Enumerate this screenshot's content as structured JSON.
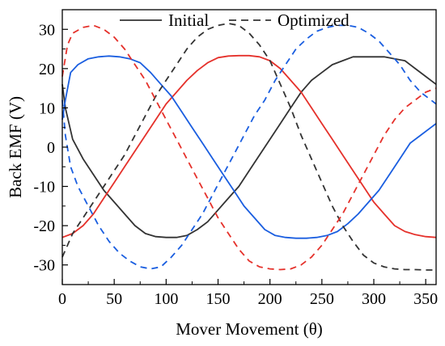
{
  "chart_data": {
    "type": "line",
    "xlabel": "Mover Movement (θ)",
    "ylabel": "Back EMF (V)",
    "xlim": [
      0,
      360
    ],
    "ylim": [
      -35,
      35
    ],
    "xticks": [
      0,
      50,
      100,
      150,
      200,
      250,
      300,
      350
    ],
    "yticks": [
      -30,
      -20,
      -10,
      0,
      10,
      20,
      30
    ],
    "grid": false,
    "legend": {
      "position": "top-center",
      "entries": [
        {
          "label": "Initial",
          "style": "solid",
          "color": "#333333"
        },
        {
          "label": "Optimized",
          "style": "dashed",
          "color": "#333333"
        }
      ]
    },
    "series": [
      {
        "group": "Initial",
        "phase_color": "#333333",
        "dashed": false,
        "x": [
          0,
          3,
          10,
          20,
          30,
          40,
          50,
          60,
          70,
          80,
          90,
          100,
          110,
          120,
          130,
          140,
          150,
          160,
          170,
          180,
          190,
          200,
          210,
          220,
          230,
          240,
          250,
          260,
          270,
          280,
          290,
          300,
          310,
          320,
          330,
          340,
          350,
          360
        ],
        "y": [
          16,
          10,
          2,
          -3,
          -7,
          -11,
          -14,
          -17,
          -20,
          -22,
          -22.8,
          -23,
          -23,
          -22.5,
          -21,
          -19,
          -16,
          -13,
          -10,
          -6,
          -2,
          2,
          6,
          10,
          14,
          17,
          19,
          21,
          22,
          23,
          23,
          23,
          23,
          22.5,
          22,
          20,
          18,
          16
        ]
      },
      {
        "group": "Initial",
        "phase_color": "#e5312b",
        "dashed": false,
        "x": [
          0,
          10,
          20,
          30,
          40,
          50,
          60,
          70,
          80,
          90,
          100,
          110,
          120,
          130,
          140,
          150,
          160,
          170,
          180,
          190,
          200,
          210,
          220,
          230,
          240,
          250,
          260,
          270,
          280,
          290,
          300,
          310,
          320,
          330,
          340,
          350,
          360
        ],
        "y": [
          -23,
          -22,
          -20,
          -17,
          -13,
          -9,
          -5,
          -1,
          3,
          7,
          11,
          14,
          17,
          19.5,
          21.5,
          22.8,
          23.2,
          23.3,
          23.3,
          23,
          22,
          20,
          17,
          14,
          10,
          6,
          2,
          -2,
          -6,
          -10,
          -14,
          -17,
          -20,
          -21.5,
          -22.3,
          -22.8,
          -23
        ]
      },
      {
        "group": "Initial",
        "phase_color": "#1a5ee0",
        "dashed": false,
        "x": [
          0,
          3,
          8,
          15,
          25,
          35,
          45,
          55,
          65,
          75,
          85,
          95,
          105,
          115,
          125,
          135,
          145,
          155,
          165,
          175,
          185,
          195,
          205,
          215,
          225,
          235,
          245,
          255,
          265,
          275,
          285,
          295,
          305,
          315,
          325,
          335,
          345,
          355,
          360
        ],
        "y": [
          7,
          12,
          19,
          21,
          22.5,
          23,
          23.2,
          23,
          22.5,
          21.5,
          19,
          16,
          13,
          9,
          5,
          1,
          -3,
          -7,
          -11,
          -15,
          -18,
          -21,
          -22.5,
          -23,
          -23.2,
          -23.2,
          -23,
          -22.5,
          -21.5,
          -19.5,
          -17,
          -14,
          -11,
          -7,
          -3,
          1,
          3,
          5,
          6
        ]
      },
      {
        "group": "Optimized",
        "phase_color": "#333333",
        "dashed": true,
        "x": [
          0,
          10,
          20,
          30,
          40,
          50,
          60,
          70,
          80,
          90,
          100,
          110,
          120,
          130,
          140,
          150,
          160,
          170,
          180,
          190,
          200,
          210,
          220,
          230,
          240,
          250,
          260,
          270,
          280,
          290,
          300,
          310,
          320,
          330,
          340,
          350,
          360
        ],
        "y": [
          -28,
          -22,
          -18,
          -14,
          -10,
          -6,
          -2,
          3,
          8,
          13,
          17,
          21,
          25,
          28,
          30,
          31,
          31.5,
          31,
          29,
          26,
          22,
          16,
          10,
          3,
          -3,
          -9,
          -15,
          -20,
          -24,
          -27.5,
          -29.5,
          -30.5,
          -31,
          -31.2,
          -31.2,
          -31.3,
          -31.3
        ]
      },
      {
        "group": "Optimized",
        "phase_color": "#e5312b",
        "dashed": true,
        "x": [
          0,
          5,
          10,
          20,
          30,
          40,
          50,
          60,
          70,
          80,
          90,
          100,
          110,
          120,
          130,
          140,
          150,
          160,
          170,
          180,
          190,
          200,
          210,
          220,
          230,
          240,
          250,
          260,
          270,
          280,
          290,
          300,
          310,
          320,
          330,
          340,
          350,
          360
        ],
        "y": [
          18,
          26,
          29,
          30.5,
          31,
          30,
          28,
          25,
          21,
          17,
          12,
          7,
          2,
          -3,
          -8,
          -13,
          -18,
          -22,
          -26,
          -29,
          -30.5,
          -31,
          -31.2,
          -31,
          -30,
          -28,
          -25,
          -21,
          -17,
          -12,
          -7,
          -2,
          3,
          7,
          10,
          12,
          14,
          15
        ]
      },
      {
        "group": "Optimized",
        "phase_color": "#1a5ee0",
        "dashed": true,
        "x": [
          0,
          3,
          8,
          15,
          25,
          35,
          45,
          55,
          65,
          75,
          85,
          95,
          105,
          115,
          125,
          135,
          145,
          155,
          165,
          175,
          185,
          195,
          205,
          215,
          225,
          235,
          245,
          255,
          265,
          275,
          285,
          295,
          305,
          315,
          325,
          335,
          345,
          355,
          360
        ],
        "y": [
          12,
          3,
          -5,
          -10,
          -15,
          -20,
          -24,
          -27,
          -29,
          -30.5,
          -31,
          -30.5,
          -28,
          -25,
          -21,
          -17,
          -12,
          -7,
          -2,
          3,
          8,
          12,
          17,
          21,
          25,
          27.5,
          29.5,
          30.5,
          31,
          31,
          30.5,
          29,
          27,
          24,
          21,
          17,
          14,
          12,
          11
        ]
      }
    ]
  }
}
